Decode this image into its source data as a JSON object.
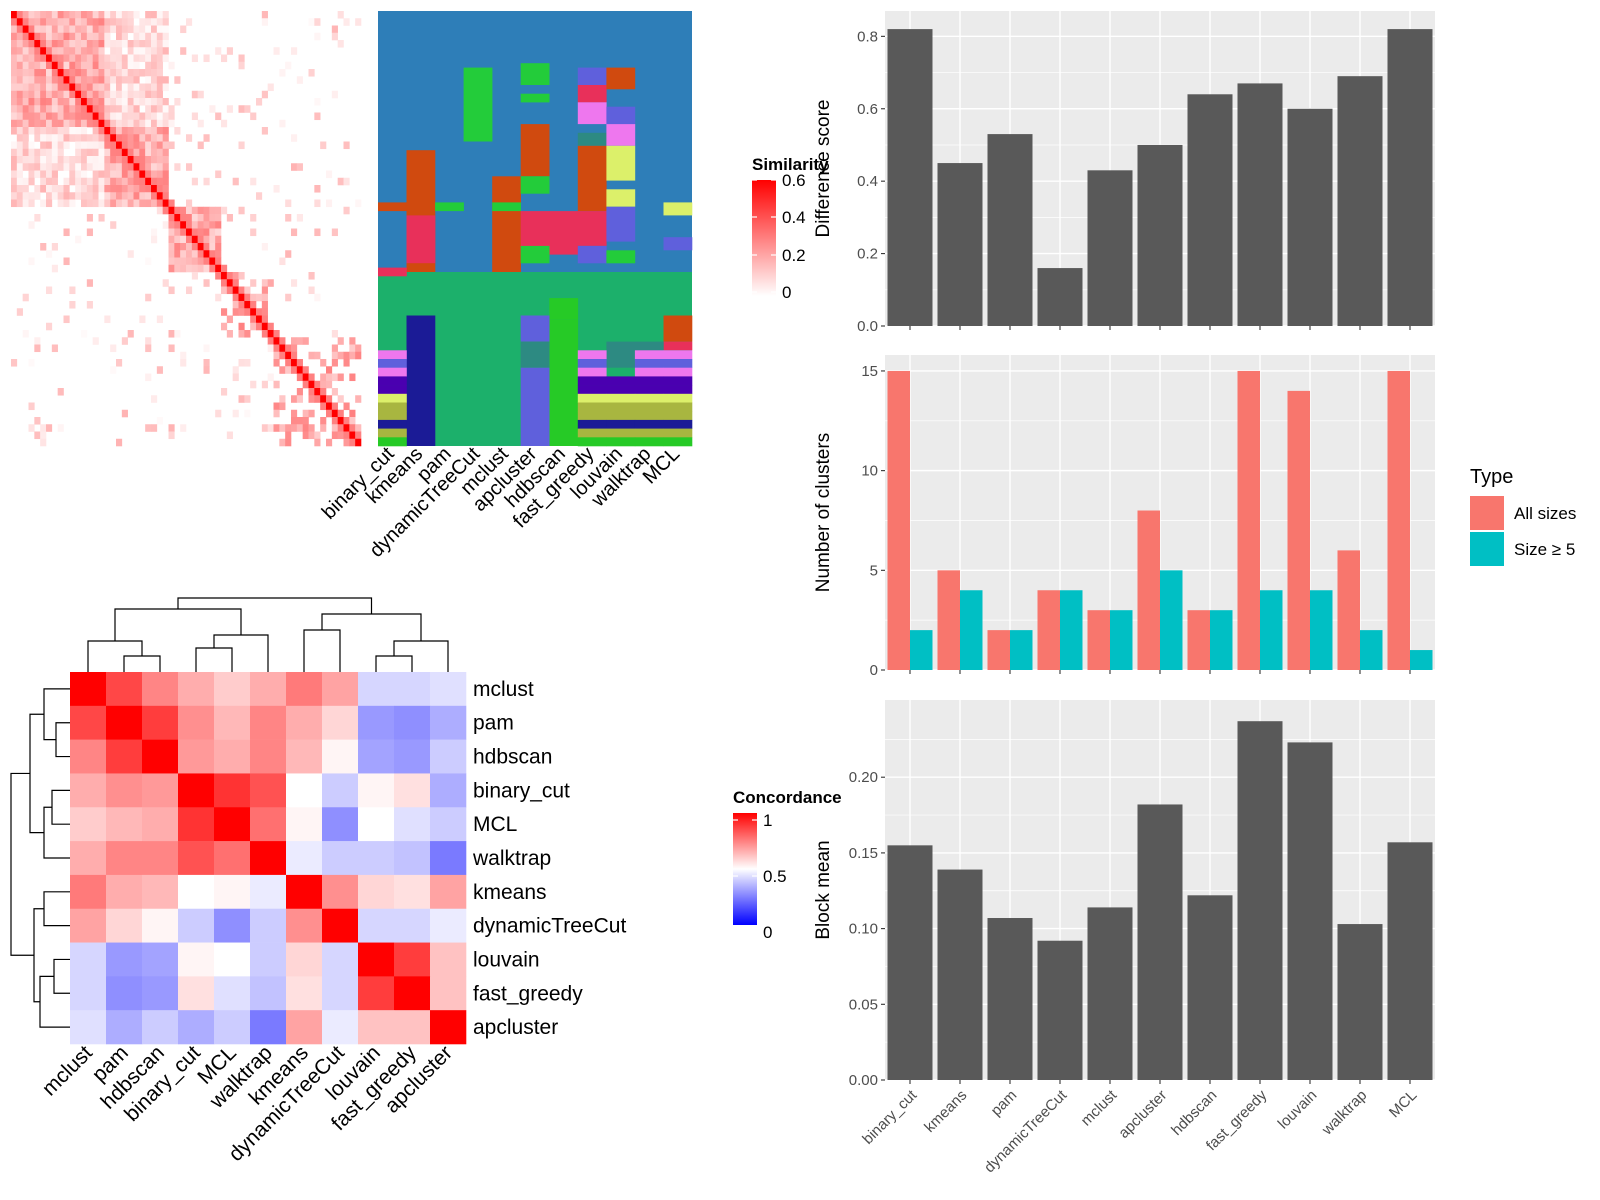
{
  "methods_order": [
    "binary_cut",
    "kmeans",
    "pam",
    "dynamicTreeCut",
    "mclust",
    "apcluster",
    "hdbscan",
    "fast_greedy",
    "louvain",
    "walktrap",
    "MCL"
  ],
  "similarity_heatmap": {
    "legend_title": "Similarity",
    "legend_ticks": [
      "0.6",
      "0.4",
      "0.2",
      "0"
    ],
    "low_color": "#ffffff",
    "high_color": "#ff0000",
    "n_terms": 60
  },
  "membership_heatmap": {
    "background_color": "#2e7eb8",
    "second_block_color": "#1cb06b",
    "palette": [
      "#d04a0f",
      "#e8305a",
      "#23cc3a",
      "#5f60dc",
      "#ee77ee",
      "#dcf06a",
      "#2d8a82",
      "#1b1b96",
      "#4a00b0",
      "#a8b640",
      "#26ca26"
    ]
  },
  "concordance_heatmap": {
    "legend_title": "Concordance",
    "legend_ticks": [
      "1",
      "0.5",
      "0"
    ],
    "row_labels": [
      "mclust",
      "pam",
      "hdbscan",
      "binary_cut",
      "MCL",
      "walktrap",
      "kmeans",
      "dynamicTreeCut",
      "louvain",
      "fast_greedy",
      "apcluster"
    ],
    "col_labels": [
      "mclust",
      "pam",
      "hdbscan",
      "binary_cut",
      "MCL",
      "walktrap",
      "kmeans",
      "dynamicTreeCut",
      "louvain",
      "fast_greedy",
      "apcluster"
    ],
    "matrix": [
      [
        1.0,
        0.86,
        0.74,
        0.66,
        0.6,
        0.66,
        0.76,
        0.68,
        0.42,
        0.42,
        0.44
      ],
      [
        0.86,
        1.0,
        0.88,
        0.72,
        0.64,
        0.74,
        0.66,
        0.58,
        0.3,
        0.28,
        0.34
      ],
      [
        0.74,
        0.88,
        1.0,
        0.7,
        0.66,
        0.74,
        0.64,
        0.52,
        0.32,
        0.3,
        0.4
      ],
      [
        0.66,
        0.72,
        0.7,
        1.0,
        0.9,
        0.84,
        0.5,
        0.4,
        0.52,
        0.56,
        0.34
      ],
      [
        0.6,
        0.64,
        0.66,
        0.9,
        1.0,
        0.78,
        0.52,
        0.28,
        0.5,
        0.44,
        0.4
      ],
      [
        0.66,
        0.74,
        0.74,
        0.84,
        0.78,
        1.0,
        0.46,
        0.4,
        0.4,
        0.38,
        0.24
      ],
      [
        0.76,
        0.66,
        0.64,
        0.5,
        0.52,
        0.46,
        1.0,
        0.72,
        0.58,
        0.56,
        0.68
      ],
      [
        0.68,
        0.58,
        0.52,
        0.4,
        0.28,
        0.4,
        0.72,
        1.0,
        0.42,
        0.42,
        0.46
      ],
      [
        0.42,
        0.3,
        0.32,
        0.52,
        0.5,
        0.4,
        0.58,
        0.42,
        1.0,
        0.88,
        0.62
      ],
      [
        0.42,
        0.28,
        0.3,
        0.56,
        0.44,
        0.38,
        0.56,
        0.42,
        0.88,
        1.0,
        0.62
      ],
      [
        0.44,
        0.34,
        0.4,
        0.34,
        0.4,
        0.24,
        0.68,
        0.46,
        0.62,
        0.62,
        1.0
      ]
    ]
  },
  "chart_data": [
    {
      "type": "bar",
      "categories": [
        "binary_cut",
        "kmeans",
        "pam",
        "dynamicTreeCut",
        "mclust",
        "apcluster",
        "hdbscan",
        "fast_greedy",
        "louvain",
        "walktrap",
        "MCL"
      ],
      "values": [
        0.82,
        0.45,
        0.53,
        0.16,
        0.43,
        0.5,
        0.64,
        0.67,
        0.6,
        0.69,
        0.82
      ],
      "ylabel": "Difference score",
      "ylim": [
        0,
        0.87
      ],
      "yticks": [
        0.0,
        0.2,
        0.4,
        0.6,
        0.8
      ],
      "ytick_labels": [
        "0.0",
        "0.2",
        "0.4",
        "0.6",
        "0.8"
      ],
      "bar_color": "#595959",
      "grid": true
    },
    {
      "type": "bar",
      "categories": [
        "binary_cut",
        "kmeans",
        "pam",
        "dynamicTreeCut",
        "mclust",
        "apcluster",
        "hdbscan",
        "fast_greedy",
        "louvain",
        "walktrap",
        "MCL"
      ],
      "series": [
        {
          "name": "All sizes",
          "values": [
            15,
            5,
            2,
            4,
            3,
            8,
            3,
            15,
            14,
            6,
            15
          ],
          "color": "#f8766d"
        },
        {
          "name": "Size ≥ 5",
          "values": [
            2,
            4,
            2,
            4,
            3,
            5,
            3,
            4,
            4,
            2,
            1
          ],
          "color": "#00bfc4"
        }
      ],
      "ylabel": "Number of clusters",
      "ylim": [
        0,
        15.8
      ],
      "yticks": [
        0,
        5,
        10,
        15
      ],
      "ytick_labels": [
        "0",
        "5",
        "10",
        "15"
      ],
      "legend_title": "Type",
      "legend_position": "right",
      "grid": true
    },
    {
      "type": "bar",
      "categories": [
        "binary_cut",
        "kmeans",
        "pam",
        "dynamicTreeCut",
        "mclust",
        "apcluster",
        "hdbscan",
        "fast_greedy",
        "louvain",
        "walktrap",
        "MCL"
      ],
      "values": [
        0.155,
        0.139,
        0.107,
        0.092,
        0.114,
        0.182,
        0.122,
        0.237,
        0.223,
        0.103,
        0.157
      ],
      "ylabel": "Block mean",
      "ylim": [
        0,
        0.251
      ],
      "yticks": [
        0.0,
        0.05,
        0.1,
        0.15,
        0.2
      ],
      "ytick_labels": [
        "0.00",
        "0.05",
        "0.10",
        "0.15",
        "0.20"
      ],
      "bar_color": "#595959",
      "grid": true
    }
  ]
}
